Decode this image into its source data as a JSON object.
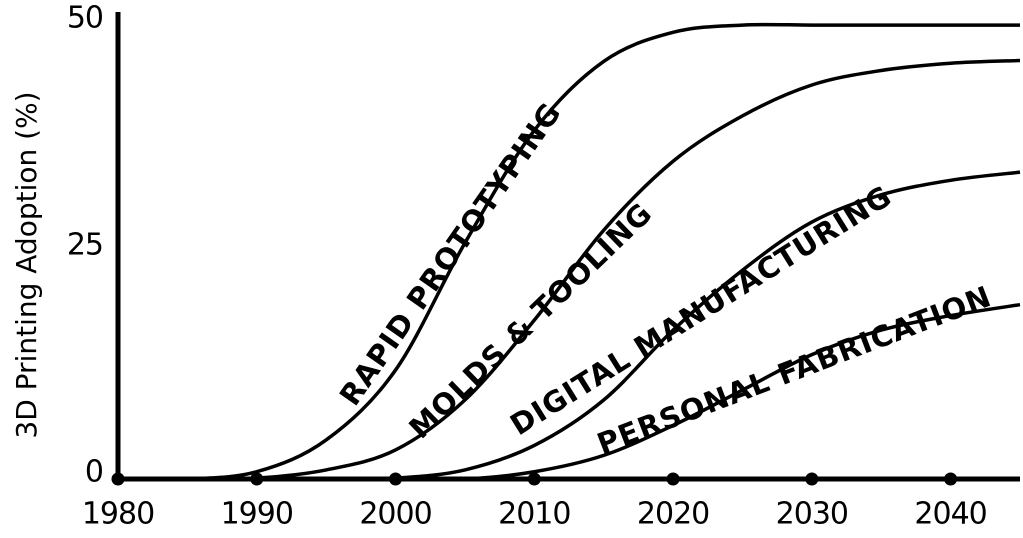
{
  "chart_data": {
    "type": "line",
    "y_label": "3D Printing Adoption (%)",
    "x": [
      1980,
      1985,
      1990,
      1995,
      2000,
      2005,
      2010,
      2015,
      2020,
      2025,
      2030,
      2035,
      2040,
      2045
    ],
    "series": [
      {
        "name": "RAPID PROTOTYPING",
        "color": "#000000",
        "values": [
          0,
          0,
          0.8,
          4.3,
          12,
          26,
          38.4,
          46,
          49.2,
          50,
          50,
          50,
          50,
          50
        ]
      },
      {
        "name": "MOLDS & TOOLING",
        "color": "#000000",
        "values": [
          0,
          0,
          0.1,
          1,
          3.2,
          8.7,
          17.5,
          27.4,
          35,
          40,
          43.4,
          45,
          45.8,
          46.1
        ]
      },
      {
        "name": "DIGITAL MANUFACTURING",
        "color": "#000000",
        "values": [
          0,
          0,
          0,
          0,
          0.1,
          1,
          3.7,
          8.7,
          16.4,
          23,
          28.3,
          31.3,
          32.9,
          33.8
        ]
      },
      {
        "name": "PERSONAL FABRICATION",
        "color": "#000000",
        "values": [
          0,
          0,
          0,
          0,
          0,
          0,
          0.8,
          2.6,
          5.9,
          9.8,
          13.7,
          16.4,
          18,
          19.2
        ]
      }
    ],
    "xlim": [
      1980,
      2045
    ],
    "xticks": [
      1980,
      1990,
      2000,
      2010,
      2020,
      2030,
      2040
    ],
    "ylim": [
      0,
      51
    ],
    "yticks": [
      0,
      25,
      50
    ],
    "grid": false
  }
}
